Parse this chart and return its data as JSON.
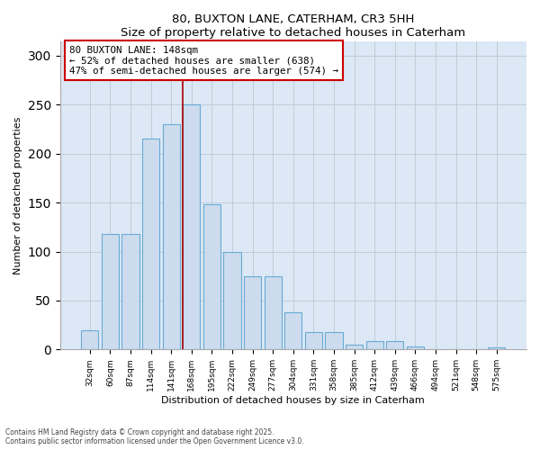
{
  "title": "80, BUXTON LANE, CATERHAM, CR3 5HH",
  "subtitle": "Size of property relative to detached houses in Caterham",
  "xlabel": "Distribution of detached houses by size in Caterham",
  "ylabel": "Number of detached properties",
  "categories": [
    "32sqm",
    "60sqm",
    "87sqm",
    "114sqm",
    "141sqm",
    "168sqm",
    "195sqm",
    "222sqm",
    "249sqm",
    "277sqm",
    "304sqm",
    "331sqm",
    "358sqm",
    "385sqm",
    "412sqm",
    "439sqm",
    "466sqm",
    "494sqm",
    "521sqm",
    "548sqm",
    "575sqm"
  ],
  "values": [
    20,
    118,
    118,
    215,
    230,
    250,
    148,
    100,
    75,
    75,
    38,
    18,
    18,
    5,
    9,
    9,
    3,
    0,
    0,
    0,
    2
  ],
  "bar_color": "#ccdcee",
  "bar_edge_color": "#6aaad4",
  "vline_color": "#aa0000",
  "annotation_box_edge_color": "#cc0000",
  "vline_x_index": 5,
  "ylim": [
    0,
    315
  ],
  "yticks": [
    0,
    50,
    100,
    150,
    200,
    250,
    300
  ],
  "background_color": "#ffffff",
  "plot_bg_color": "#dce8f5",
  "grid_color": "#c0ccd8",
  "marker_label_line1": "80 BUXTON LANE: 148sqm",
  "marker_label_line2": "← 52% of detached houses are smaller (638)",
  "marker_label_line3": "47% of semi-detached houses are larger (574) →",
  "footer_line1": "Contains HM Land Registry data © Crown copyright and database right 2025.",
  "footer_line2": "Contains public sector information licensed under the Open Government Licence v3.0."
}
